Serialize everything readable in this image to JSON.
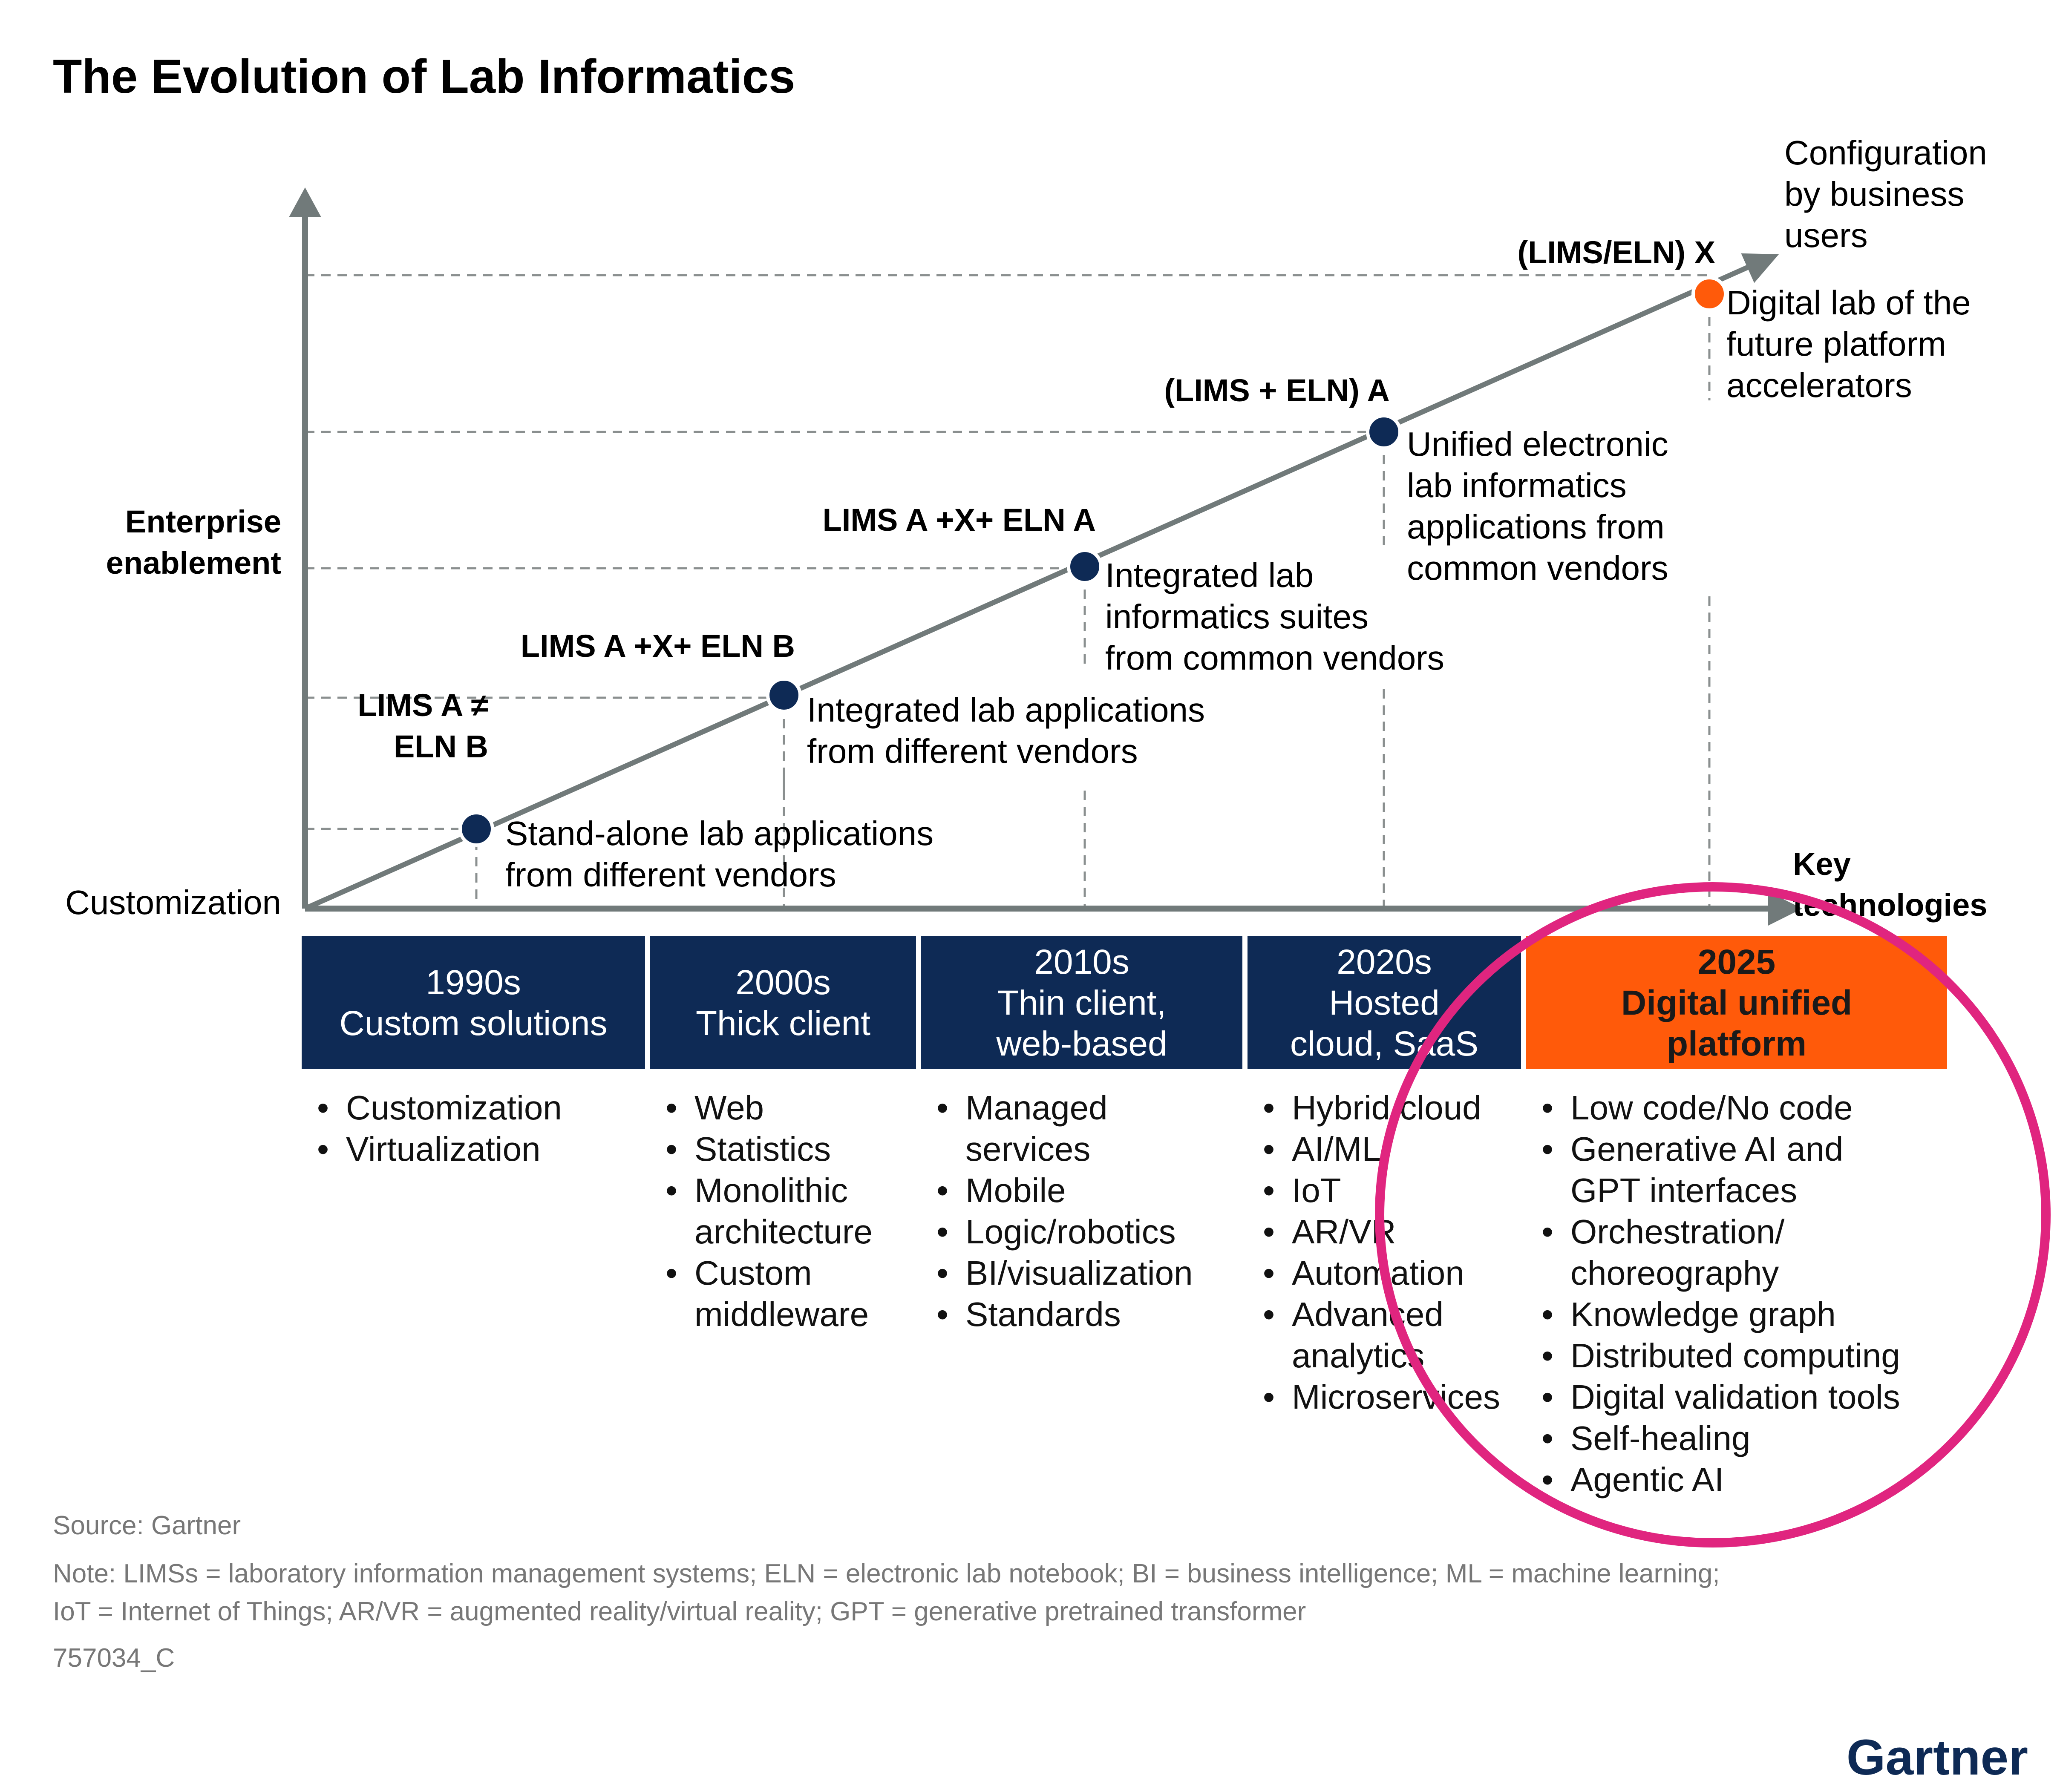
{
  "title": "The Evolution of Lab Informatics",
  "colors": {
    "navy": "#0e2a55",
    "orange": "#ff5a0a",
    "axis": "#717a7a",
    "dash": "#8a8f8f",
    "highlight": "#e0257f",
    "footnote": "#777777"
  },
  "axes": {
    "y_label_line1": "Enterprise",
    "y_label_line2": "enablement",
    "origin_label": "Customization",
    "x_label_line1": "Key",
    "x_label_line2": "technologies",
    "top_note": [
      "Configuration",
      "by business",
      "users"
    ]
  },
  "milestones": [
    {
      "label": [
        "LIMS A ≠",
        "ELN B"
      ],
      "desc": [
        "Stand-alone lab applications",
        "from different vendors"
      ]
    },
    {
      "label": [
        "LIMS A +X+ ELN B"
      ],
      "desc": [
        "Integrated lab applications",
        "from different vendors"
      ]
    },
    {
      "label": [
        "LIMS A +X+ ELN A"
      ],
      "desc": [
        "Integrated lab",
        "informatics suites",
        "from common vendors"
      ]
    },
    {
      "label": [
        "(LIMS + ELN) A"
      ],
      "desc": [
        "Unified electronic",
        "lab informatics",
        "applications from",
        "common vendors"
      ]
    },
    {
      "label": [
        "(LIMS/ELN) X"
      ],
      "desc": [
        "Digital lab of the",
        "future platform",
        "accelerators"
      ]
    }
  ],
  "eras": [
    {
      "heading": [
        "1990s",
        "Custom solutions"
      ],
      "highlight": false,
      "items": [
        [
          "Customization"
        ],
        [
          "Virtualization"
        ]
      ]
    },
    {
      "heading": [
        "2000s",
        "Thick client"
      ],
      "highlight": false,
      "items": [
        [
          "Web"
        ],
        [
          "Statistics"
        ],
        [
          "Monolithic",
          "architecture"
        ],
        [
          "Custom",
          "middleware"
        ]
      ]
    },
    {
      "heading": [
        "2010s",
        "Thin client,",
        "web-based"
      ],
      "highlight": false,
      "items": [
        [
          "Managed",
          "services"
        ],
        [
          "Mobile"
        ],
        [
          "Logic/robotics"
        ],
        [
          "BI/visualization"
        ],
        [
          "Standards"
        ]
      ]
    },
    {
      "heading": [
        "2020s",
        "Hosted",
        "cloud, SaaS"
      ],
      "highlight": false,
      "items": [
        [
          "Hybrid cloud"
        ],
        [
          "AI/ML"
        ],
        [
          "IoT"
        ],
        [
          "AR/VR"
        ],
        [
          "Automation"
        ],
        [
          "Advanced",
          "analytics"
        ],
        [
          "Microservices"
        ]
      ]
    },
    {
      "heading": [
        "2025",
        "Digital unified",
        "platform"
      ],
      "highlight": true,
      "items": [
        [
          "Low code/No code"
        ],
        [
          "Generative AI and",
          "GPT interfaces"
        ],
        [
          "Orchestration/",
          "choreography"
        ],
        [
          "Knowledge graph"
        ],
        [
          "Distributed computing"
        ],
        [
          "Digital validation tools"
        ],
        [
          "Self-healing"
        ],
        [
          "Agentic AI"
        ]
      ]
    }
  ],
  "footer": {
    "source": "Source: Gartner",
    "note_line1": "Note: LIMSs = laboratory information management systems; ELN = electronic lab notebook; BI = business intelligence; ML = machine learning;",
    "note_line2": "IoT = Internet of Things; AR/VR = augmented reality/virtual reality; GPT = generative pretrained transformer",
    "id": "757034_C",
    "logo": "Gartner"
  }
}
